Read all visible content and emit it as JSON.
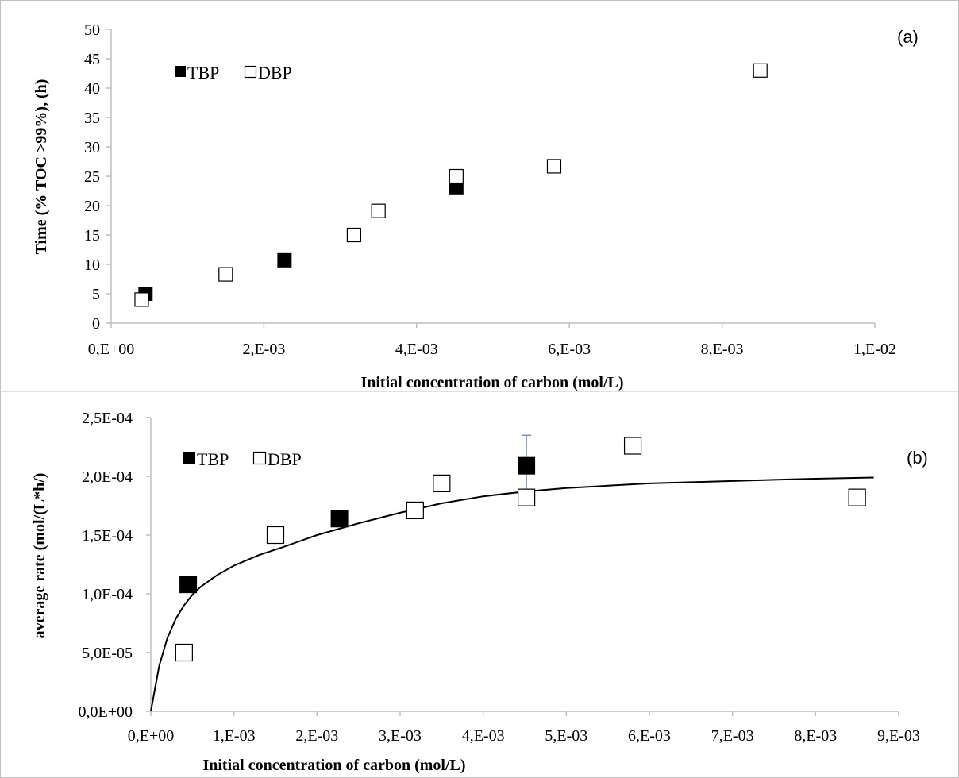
{
  "chart_data": [
    {
      "panel_label": "(a)",
      "type": "scatter",
      "xlabel": "Initial concentration of carbon (mol/L)",
      "ylabel": "Time (% TOC >99%), (h)",
      "xlim": [
        0,
        0.01
      ],
      "ylim": [
        0,
        50
      ],
      "x_ticks": [
        0,
        0.002,
        0.004,
        0.006,
        0.008,
        0.01
      ],
      "x_tick_labels": [
        "0,E+00",
        "2,E-03",
        "4,E-03",
        "6,E-03",
        "8,E-03",
        "1,E-02"
      ],
      "y_ticks": [
        0,
        5,
        10,
        15,
        20,
        25,
        30,
        35,
        40,
        45,
        50
      ],
      "y_tick_labels": [
        "0",
        "5",
        "10",
        "15",
        "20",
        "25",
        "30",
        "35",
        "40",
        "45",
        "50"
      ],
      "legend": [
        "TBP",
        "DBP"
      ],
      "legend_position": "top-left",
      "grid": false,
      "series": [
        {
          "name": "TBP",
          "marker": "filled-square",
          "points": [
            [
              0.00045,
              5.0
            ],
            [
              0.00227,
              10.7
            ],
            [
              0.00452,
              23.0
            ]
          ]
        },
        {
          "name": "DBP",
          "marker": "open-square",
          "points": [
            [
              0.0004,
              4.0
            ],
            [
              0.0015,
              8.3
            ],
            [
              0.00318,
              15.0
            ],
            [
              0.0035,
              19.1
            ],
            [
              0.00452,
              25.0
            ],
            [
              0.0058,
              26.7
            ],
            [
              0.0085,
              43.0
            ]
          ]
        }
      ]
    },
    {
      "panel_label": "(b)",
      "type": "scatter",
      "xlabel": "Initial concentration of carbon (mol/L)",
      "ylabel": "average rate (mol/(L*h/)",
      "xlim": [
        0,
        0.009
      ],
      "ylim": [
        0,
        0.00025
      ],
      "x_ticks": [
        0,
        0.001,
        0.002,
        0.003,
        0.004,
        0.005,
        0.006,
        0.007,
        0.008,
        0.009
      ],
      "x_tick_labels": [
        "0,E+00",
        "1,E-03",
        "2,E-03",
        "3,E-03",
        "4,E-03",
        "5,E-03",
        "6,E-03",
        "7,E-03",
        "8,E-03",
        "9,E-03"
      ],
      "y_ticks": [
        0,
        5e-05,
        0.0001,
        0.00015,
        0.0002,
        0.00025
      ],
      "y_tick_labels": [
        "0,0E+00",
        "5,0E-05",
        "1,0E-04",
        "1,5E-04",
        "2,0E-04",
        "2,5E-04"
      ],
      "legend": [
        "TBP",
        "DBP"
      ],
      "legend_position": "top-left",
      "grid": false,
      "series": [
        {
          "name": "TBP",
          "marker": "filled-square",
          "points": [
            [
              0.00045,
              0.000108
            ],
            [
              0.00227,
              0.000164
            ],
            [
              0.00452,
              0.000209
            ]
          ],
          "error_bars": [
            null,
            null,
            2.6e-05
          ]
        },
        {
          "name": "DBP",
          "marker": "open-square",
          "points": [
            [
              0.0004,
              5e-05
            ],
            [
              0.0015,
              0.00015
            ],
            [
              0.00318,
              0.000171
            ],
            [
              0.0035,
              0.000194
            ],
            [
              0.00452,
              0.000182
            ],
            [
              0.0058,
              0.000226
            ],
            [
              0.0085,
              0.000182
            ]
          ]
        }
      ],
      "fit_curve": {
        "type": "saturation",
        "x_points": [
          0,
          0.0001,
          0.0002,
          0.0003,
          0.0004,
          0.0005,
          0.0006,
          0.0008,
          0.001,
          0.0013,
          0.0016,
          0.002,
          0.0025,
          0.003,
          0.0035,
          0.004,
          0.0045,
          0.005,
          0.0055,
          0.006,
          0.0065,
          0.007,
          0.0075,
          0.008,
          0.0087
        ],
        "y_points": [
          0,
          3.86e-05,
          6.25e-05,
          7.87e-05,
          9.03e-05,
          9.92e-05,
          0.000106,
          0.000116,
          0.000124,
          0.000133,
          0.00014,
          0.00015,
          0.00016,
          0.000169,
          0.000177,
          0.000183,
          0.000187,
          0.00019,
          0.000192,
          0.000194,
          0.000195,
          0.000196,
          0.000197,
          0.000198,
          0.000199
        ]
      }
    }
  ]
}
